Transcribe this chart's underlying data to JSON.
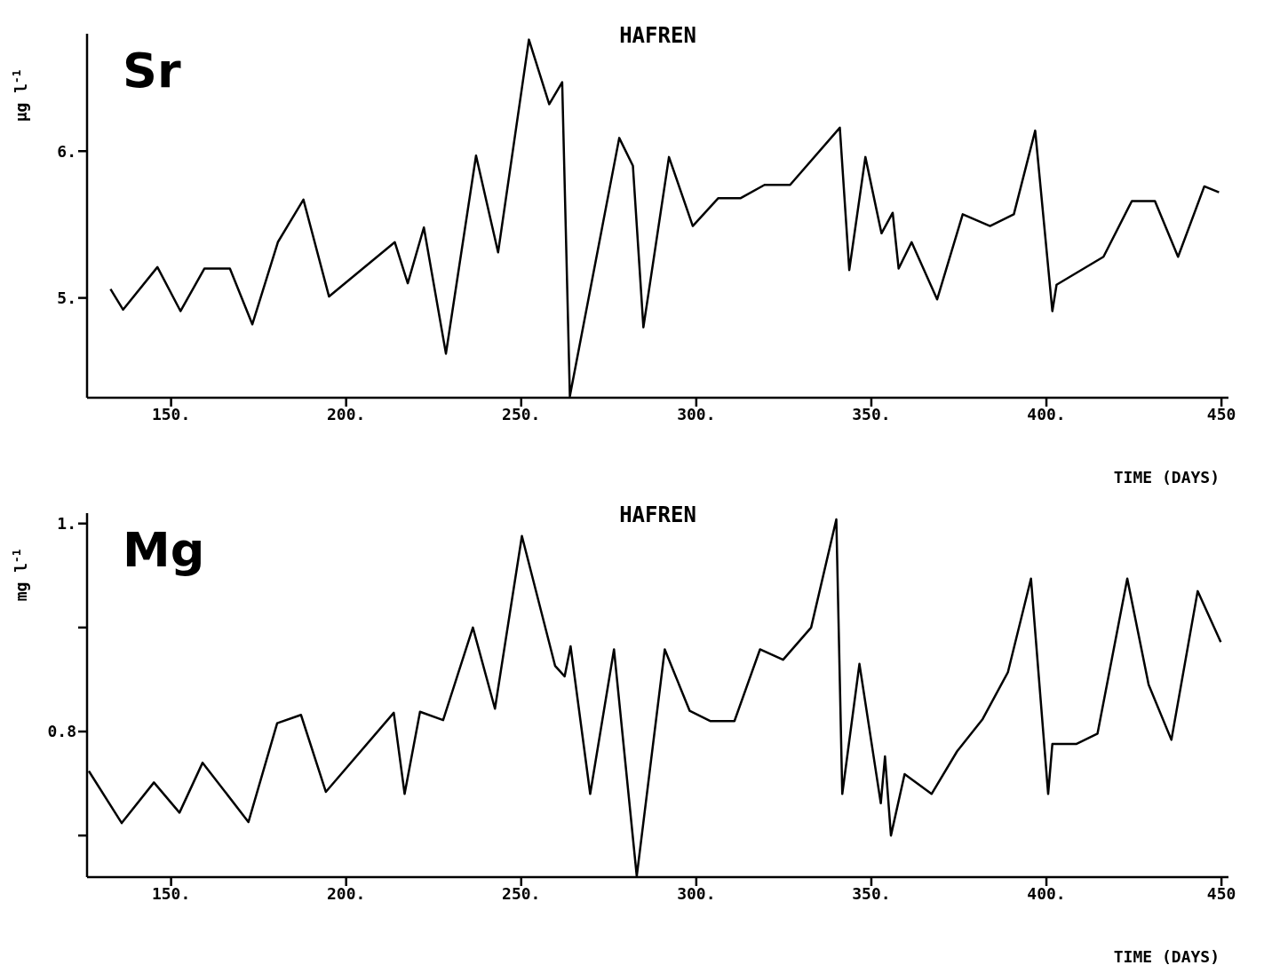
{
  "chart_data": [
    {
      "type": "line",
      "title": "HAFREN",
      "annotations": [
        "Sr"
      ],
      "xlabel": "TIME (DAYS)",
      "ylabel": "µg l$^{-1}$",
      "marker": "none",
      "line_style": "solid",
      "grid": false,
      "legend": false,
      "xlim": [
        126,
        452
      ],
      "xticks": [
        {
          "value": 150,
          "label": "150."
        },
        {
          "value": 200,
          "label": "200."
        },
        {
          "value": 250,
          "label": "250."
        },
        {
          "value": 300,
          "label": "300."
        },
        {
          "value": 350,
          "label": "350."
        },
        {
          "value": 400,
          "label": "400."
        },
        {
          "value": 450,
          "label": "450"
        }
      ],
      "ylim": [
        4.32,
        6.8
      ],
      "yticks": [
        {
          "value": 5,
          "label": "5."
        },
        {
          "value": 6,
          "label": "6."
        }
      ],
      "series": [
        {
          "color": "#000000",
          "x": [
            132.7,
            136.3,
            146.1,
            152.7,
            159.5,
            166.8,
            173.2,
            180.5,
            187.8,
            195.1,
            213.9,
            217.6,
            222.2,
            228.5,
            237.1,
            243.4,
            252.2,
            258.0,
            261.7,
            263.9,
            278.0,
            281.9,
            284.9,
            292.2,
            299.0,
            306.3,
            312.7,
            319.5,
            326.8,
            341.0,
            343.7,
            348.3,
            352.9,
            356.1,
            357.8,
            361.5,
            368.8,
            376.1,
            383.9,
            390.7,
            396.8,
            401.7,
            402.9,
            416.3,
            424.4,
            431.0,
            437.6,
            445.1,
            449.3
          ],
          "values": [
            5.06,
            4.92,
            5.21,
            4.91,
            5.2,
            5.2,
            4.82,
            5.38,
            5.67,
            5.01,
            5.38,
            5.1,
            5.48,
            4.62,
            5.97,
            5.31,
            6.76,
            6.32,
            6.47,
            4.33,
            6.09,
            5.9,
            4.8,
            5.96,
            5.49,
            5.68,
            5.68,
            5.77,
            5.77,
            6.16,
            5.19,
            5.96,
            5.44,
            5.58,
            5.2,
            5.38,
            4.99,
            5.57,
            5.49,
            5.57,
            6.14,
            4.91,
            5.09,
            5.28,
            5.66,
            5.66,
            5.28,
            5.76,
            5.72
          ]
        }
      ]
    },
    {
      "type": "line",
      "title": "HAFREN",
      "annotations": [
        "Mg"
      ],
      "xlabel": "TIME (DAYS)",
      "ylabel": "mg l$^{-1}$",
      "marker": "none",
      "line_style": "solid",
      "grid": false,
      "legend": false,
      "xlim": [
        126,
        452
      ],
      "xticks": [
        {
          "value": 150,
          "label": "150."
        },
        {
          "value": 200,
          "label": "200."
        },
        {
          "value": 250,
          "label": "250."
        },
        {
          "value": 300,
          "label": "300."
        },
        {
          "value": 350,
          "label": "350."
        },
        {
          "value": 400,
          "label": "400."
        },
        {
          "value": 450,
          "label": "450"
        }
      ],
      "ylim": [
        0.66,
        1.01
      ],
      "yticks": [
        {
          "value": 0.7,
          "label": null
        },
        {
          "value": 0.8,
          "label": "0.8"
        },
        {
          "value": 0.9,
          "label": null
        },
        {
          "value": 1,
          "label": "1."
        }
      ],
      "series": [
        {
          "color": "#000000",
          "x": [
            126.5,
            135.9,
            145.1,
            152.4,
            159.0,
            172.1,
            180.3,
            187.1,
            194.2,
            213.6,
            216.7,
            221.1,
            227.7,
            236.2,
            242.5,
            250.2,
            259.7,
            262.4,
            264.1,
            269.7,
            276.5,
            283.0,
            291.0,
            298.1,
            304.1,
            310.9,
            318.2,
            324.8,
            332.8,
            340.0,
            341.7,
            346.6,
            352.7,
            353.9,
            355.6,
            359.5,
            367.2,
            374.5,
            381.8,
            389.0,
            395.6,
            400.5,
            401.7,
            408.5,
            414.6,
            423.1,
            429.2,
            435.7,
            443.2,
            449.8
          ],
          "values": [
            0.762,
            0.712,
            0.751,
            0.722,
            0.77,
            0.713,
            0.808,
            0.816,
            0.742,
            0.818,
            0.74,
            0.819,
            0.811,
            0.9,
            0.822,
            0.988,
            0.863,
            0.853,
            0.882,
            0.74,
            0.879,
            0.661,
            0.879,
            0.82,
            0.81,
            0.81,
            0.879,
            0.869,
            0.9,
            1.004,
            0.74,
            0.865,
            0.731,
            0.776,
            0.7,
            0.759,
            0.74,
            0.781,
            0.812,
            0.857,
            0.947,
            0.74,
            0.788,
            0.788,
            0.798,
            0.947,
            0.845,
            0.792,
            0.935,
            0.886
          ]
        }
      ]
    }
  ]
}
